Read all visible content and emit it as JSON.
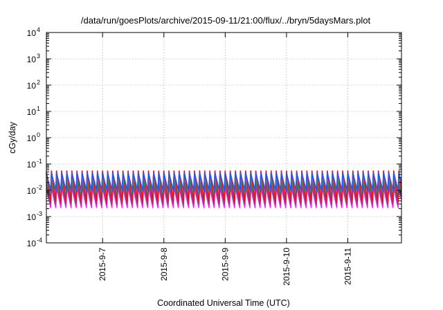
{
  "chart_data": {
    "type": "line",
    "title": "/data/run/goesPlots/archive/2015-09-11/21:00/flux/../bryn/5daysMars.plot",
    "xlabel": "Coordinated Universal Time (UTC)",
    "ylabel": "cGy/day",
    "x_range": [
      "2015-09-06 02:00",
      "2015-09-11 21:00"
    ],
    "x_ticks": [
      "2015-9-7",
      "2015-9-8",
      "2015-9-9",
      "2015-9-10",
      "2015-9-11"
    ],
    "y_scale": "log",
    "ylim": [
      0.0001,
      10000
    ],
    "y_ticks": [
      {
        "base": "10",
        "exp": "-4",
        "value": 0.0001
      },
      {
        "base": "10",
        "exp": "-3",
        "value": 0.001
      },
      {
        "base": "10",
        "exp": "-2",
        "value": 0.01
      },
      {
        "base": "10",
        "exp": "-1",
        "value": 0.1
      },
      {
        "base": "10",
        "exp": "0",
        "value": 1
      },
      {
        "base": "10",
        "exp": "1",
        "value": 10
      },
      {
        "base": "10",
        "exp": "2",
        "value": 100
      },
      {
        "base": "10",
        "exp": "3",
        "value": 1000
      },
      {
        "base": "10",
        "exp": "4",
        "value": 10000
      }
    ],
    "grid": true,
    "legend": "none",
    "periods_per_day": 12,
    "series": [
      {
        "color": "#e8151b",
        "peak": 0.055,
        "trough": 0.0038
      },
      {
        "color": "#2b55f2",
        "peak": 0.047,
        "trough": 0.01
      },
      {
        "color": "#1ec6d2",
        "peak": 0.038,
        "trough": 0.0065
      },
      {
        "color": "#2a9a4a",
        "peak": 0.024,
        "trough": 0.0045
      },
      {
        "color": "#8b3a8b",
        "peak": 0.018,
        "trough": 0.003
      },
      {
        "color": "#ff1ee6",
        "peak": 0.013,
        "trough": 0.0022
      }
    ]
  }
}
